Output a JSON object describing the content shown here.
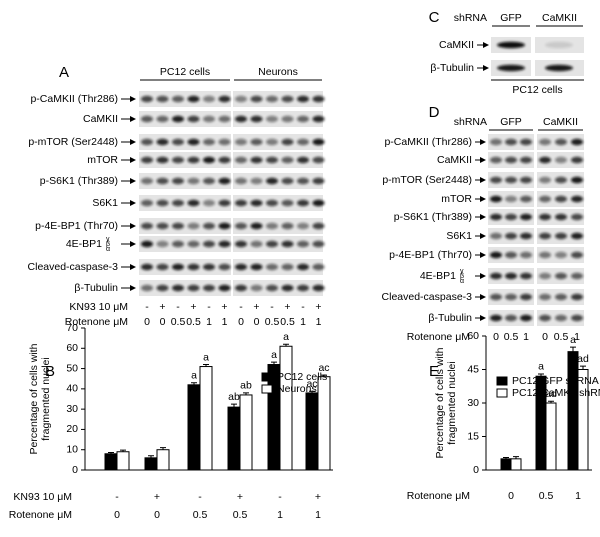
{
  "panel_a": {
    "label": "A",
    "groups": [
      "PC12 cells",
      "Neurons"
    ],
    "rows": [
      "p-CaMKII (Thr286)",
      "CaMKII",
      "p-mTOR (Ser2448)",
      "mTOR",
      "p-S6K1 (Thr389)",
      "S6K1",
      "p-4E-BP1 (Thr70)",
      "4E-BP1",
      "Cleaved-caspase-3",
      "β-Tubulin"
    ],
    "isoforms": [
      "γ",
      "β",
      "α"
    ],
    "lane_rows": [
      {
        "label": "KN93 10 μM",
        "values": [
          "-",
          "+",
          "-",
          "+",
          "-",
          "+",
          "-",
          "+",
          "-",
          "+",
          "-",
          "+"
        ]
      },
      {
        "label": "Rotenone μM",
        "values": [
          "0",
          "0",
          "0.5",
          "0.5",
          "1",
          "1",
          "0",
          "0",
          "0.5",
          "0.5",
          "1",
          "1"
        ]
      }
    ]
  },
  "panel_c": {
    "label": "C",
    "group_title": "shRNA",
    "groups": [
      "GFP",
      "CaMKII"
    ],
    "rows": [
      "CaMKII",
      "β-Tubulin"
    ],
    "footer": "PC12 cells"
  },
  "panel_d": {
    "label": "D",
    "group_title": "shRNA",
    "groups": [
      "GFP",
      "CaMKII"
    ],
    "rows": [
      "p-CaMKII (Thr286)",
      "CaMKII",
      "p-mTOR (Ser2448)",
      "mTOR",
      "p-S6K1 (Thr389)",
      "S6K1",
      "p-4E-BP1 (Thr70)",
      "4E-BP1",
      "Cleaved-caspase-3",
      "β-Tubulin"
    ],
    "isoforms": [
      "γ",
      "β",
      "α"
    ],
    "lane_rows": [
      {
        "label": "Rotenone μM",
        "values": [
          "0",
          "0.5",
          "1",
          "0",
          "0.5",
          "1"
        ]
      }
    ]
  },
  "chart_data": [
    {
      "type": "bar",
      "label": "B",
      "ylabel": [
        "Percentage of cells with",
        "fragmented nuclei"
      ],
      "categories": [
        "0",
        "0",
        "0.5",
        "0.5",
        "1",
        "1"
      ],
      "category_label": "Rotenone μM",
      "treatment": {
        "label": "KN93 10 μM",
        "values": [
          "-",
          "+",
          "-",
          "+",
          "-",
          "+"
        ]
      },
      "ylim": [
        0,
        70
      ],
      "yticks": [
        0,
        10,
        20,
        30,
        40,
        50,
        60,
        70
      ],
      "series": [
        {
          "name": "PC12 cells",
          "color": "#000000",
          "values": [
            8,
            6,
            42,
            31,
            52,
            38
          ],
          "errors": [
            0.6,
            1,
            1,
            1.5,
            1.2,
            0.8
          ],
          "annotations": [
            null,
            null,
            "a",
            "ab",
            "a",
            "ac"
          ]
        },
        {
          "name": "Neurons",
          "color": "#ffffff",
          "values": [
            9,
            10,
            51,
            37,
            61,
            46
          ],
          "errors": [
            0.8,
            1,
            1,
            1,
            1,
            0.8
          ],
          "annotations": [
            null,
            null,
            "a",
            "ab",
            "a",
            "ac"
          ]
        }
      ]
    },
    {
      "type": "bar",
      "label": "E",
      "ylabel": [
        "Percentage of cells with",
        "fragmented nuclei"
      ],
      "categories": [
        "0",
        "0.5",
        "1"
      ],
      "category_label": "Rotenone μM",
      "ylim": [
        0,
        60
      ],
      "yticks": [
        0,
        15,
        30,
        45,
        60
      ],
      "series": [
        {
          "name": "PC12/GFP shRNA",
          "color": "#000000",
          "values": [
            5,
            42,
            53
          ],
          "errors": [
            0.6,
            1,
            2
          ],
          "annotations": [
            null,
            "a",
            "a"
          ]
        },
        {
          "name": "PC12/CaMKII shRNA",
          "color": "#ffffff",
          "values": [
            5,
            30,
            45
          ],
          "errors": [
            1,
            0.8,
            1.5
          ],
          "annotations": [
            null,
            "ad",
            "ad"
          ]
        }
      ]
    }
  ]
}
